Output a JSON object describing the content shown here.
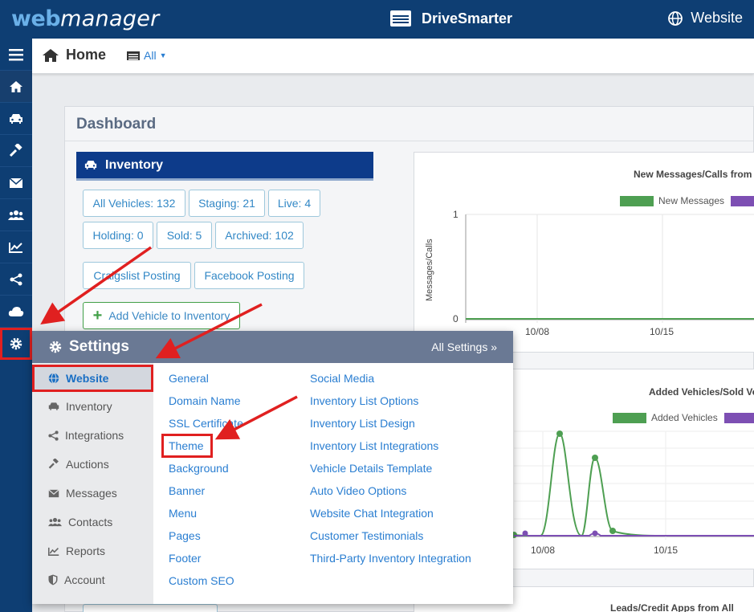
{
  "header": {
    "logo_web": "web",
    "logo_manager": "manager",
    "dealer_name": "DriveSmarter",
    "website_label": "Website"
  },
  "rail": {
    "items": [
      "menu-icon",
      "home-icon",
      "car-icon",
      "gavel-icon",
      "envelope-icon",
      "users-icon",
      "chart-icon",
      "share-icon",
      "cloud-icon",
      "gear-icon"
    ]
  },
  "subheader": {
    "home_label": "Home",
    "filter_label": "All"
  },
  "dashboard": {
    "title": "Dashboard",
    "inventory": {
      "title": "Inventory",
      "buttons": [
        "All Vehicles: 132",
        "Staging: 21",
        "Live: 4",
        "Holding: 0",
        "Sold: 5",
        "Archived: 102"
      ],
      "craigslist": "Craigslist Posting",
      "facebook": "Facebook Posting",
      "add_vehicle": "Add Vehicle to Inventory"
    }
  },
  "charts": {
    "messages": {
      "title": "New Messages/Calls from",
      "legend": "New Messages",
      "ylabel": "Messages/Calls",
      "y_ticks": [
        "1",
        "0"
      ],
      "x_ticks": [
        "10/08",
        "10/15"
      ],
      "colors": {
        "series1": "#4e9f52",
        "series2": "#7d4fb3"
      }
    },
    "vehicles": {
      "title": "Added Vehicles/Sold Ve",
      "legend": "Added Vehicles",
      "x_ticks": [
        "10/08",
        "10/15"
      ],
      "colors": {
        "series1": "#4e9f52",
        "series2": "#7d4fb3"
      }
    },
    "leads": {
      "title": "Leads/Credit Apps from All"
    }
  },
  "chart_data": [
    {
      "type": "line",
      "title": "New Messages/Calls from",
      "ylabel": "Messages/Calls",
      "x": [
        "10/08",
        "10/15"
      ],
      "ylim": [
        0,
        1
      ],
      "series": [
        {
          "name": "New Messages",
          "values": [
            0,
            0
          ]
        }
      ]
    },
    {
      "type": "line",
      "title": "Added Vehicles/Sold Ve",
      "x": [
        "10/08",
        "10/15"
      ],
      "series": [
        {
          "name": "Added Vehicles"
        }
      ]
    }
  ],
  "settings": {
    "title": "Settings",
    "all_settings": "All Settings »",
    "nav": [
      "Website",
      "Inventory",
      "Integrations",
      "Auctions",
      "Messages",
      "Contacts",
      "Reports",
      "Account"
    ],
    "col1": [
      "General",
      "Domain Name",
      "SSL Certificate",
      "Theme",
      "Background",
      "Banner",
      "Menu",
      "Pages",
      "Footer",
      "Custom SEO"
    ],
    "col2": [
      "Social Media",
      "Inventory List Options",
      "Inventory List Design",
      "Inventory List Integrations",
      "Vehicle Details Template",
      "Auto Video Options",
      "Website Chat Integration",
      "Customer Testimonials",
      "Third-Party Inventory Integration"
    ]
  }
}
